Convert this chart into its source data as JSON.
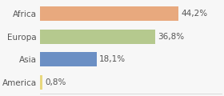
{
  "categories": [
    "America",
    "Asia",
    "Europa",
    "Africa"
  ],
  "values": [
    0.8,
    18.1,
    36.8,
    44.2
  ],
  "bar_colors": [
    "#e8d87e",
    "#6b8fc4",
    "#b5c98e",
    "#e8a97e"
  ],
  "labels": [
    "0,8%",
    "18,1%",
    "36,8%",
    "44,2%"
  ],
  "background_color": "#f7f7f7",
  "xlim": [
    0,
    58
  ],
  "bar_height": 0.62,
  "label_fontsize": 7.5,
  "tick_fontsize": 7.5
}
